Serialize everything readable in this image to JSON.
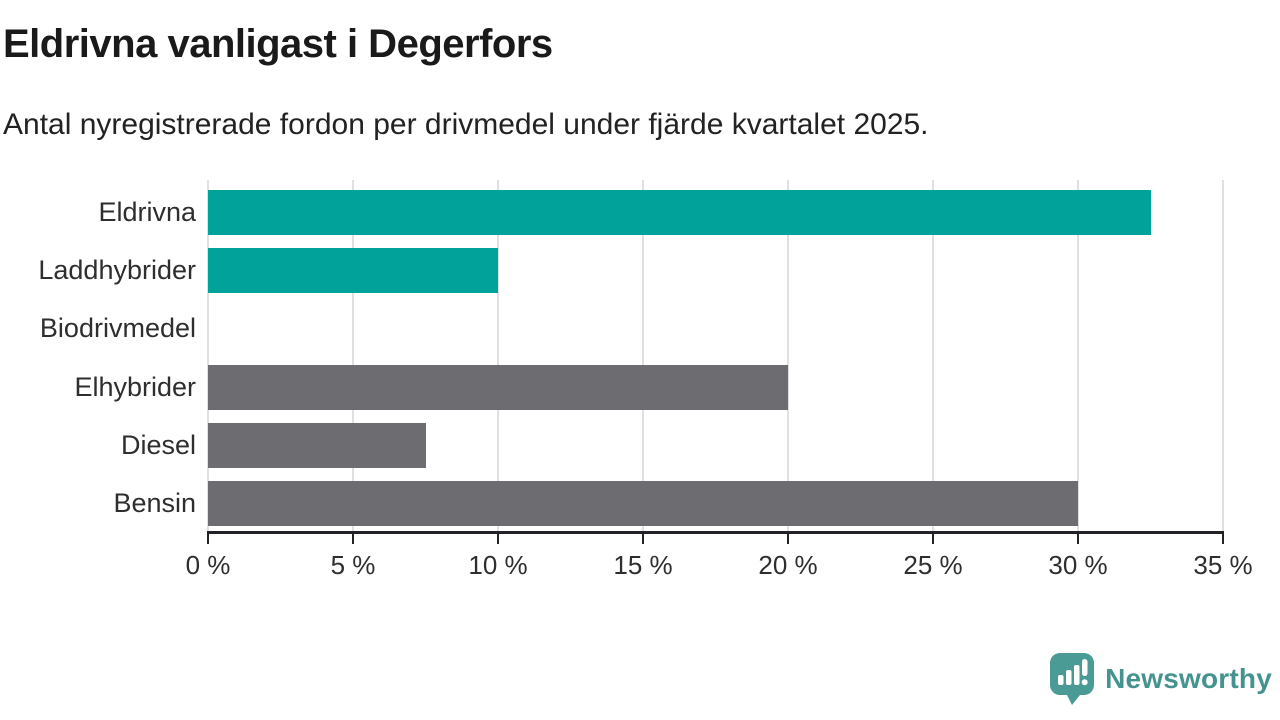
{
  "title": "Eldrivna vanligast i Degerfors",
  "subtitle": "Antal nyregistrerade fordon per drivmedel under fjärde kvartalet 2025.",
  "colors": {
    "teal": "#00a29a",
    "gray": "#6d6c71",
    "axis": "#222327",
    "gridline": "#e0e0e0",
    "logo_teal": "#4a9a95",
    "brand_text": "#45938e"
  },
  "chart_data": {
    "type": "bar",
    "orientation": "horizontal",
    "title": "Eldrivna vanligast i Degerfors",
    "subtitle": "Antal nyregistrerade fordon per drivmedel under fjärde kvartalet 2025.",
    "categories": [
      "Eldrivna",
      "Laddhybrider",
      "Biodrivmedel",
      "Elhybrider",
      "Diesel",
      "Bensin"
    ],
    "values": [
      32.5,
      10,
      0,
      20,
      7.5,
      30
    ],
    "unit": "%",
    "bar_colors": [
      "#00a29a",
      "#00a29a",
      "#6d6c71",
      "#6d6c71",
      "#6d6c71",
      "#6d6c71"
    ],
    "xlabel": "",
    "ylabel": "",
    "xlim": [
      0,
      35
    ],
    "x_ticks": [
      0,
      5,
      10,
      15,
      20,
      25,
      30,
      35
    ],
    "x_tick_labels": [
      "0 %",
      "5 %",
      "10 %",
      "15 %",
      "20 %",
      "25 %",
      "30 %",
      "35 %"
    ],
    "grid": "vertical-gridlines-on",
    "legend": "none"
  },
  "footer": {
    "brand": "Newsworthy",
    "logo_icon": "newsworthy-speech-bubble-chart-icon"
  }
}
